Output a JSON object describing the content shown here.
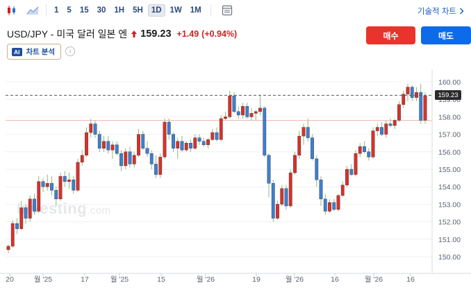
{
  "toolbar": {
    "timeframes": [
      "1",
      "5",
      "15",
      "30",
      "1H",
      "5H",
      "1D",
      "1W",
      "1M"
    ],
    "active_timeframe": "1D",
    "tech_chart_label": "기술적 차트"
  },
  "header": {
    "pair_name": "USD/JPY - 미국 달러 일본 엔",
    "price": "159.23",
    "change": "+1.49",
    "change_pct": "(+0.94%)"
  },
  "buttons": {
    "buy": "매수",
    "sell": "매도"
  },
  "ai": {
    "badge": "AI",
    "label": "차트 분석"
  },
  "chart_data": {
    "type": "candlestick",
    "y_ticks": [
      "160.00",
      "159.00",
      "158.00",
      "157.00",
      "156.00",
      "155.00",
      "154.00",
      "153.00",
      "152.00",
      "151.00",
      "150.00"
    ],
    "x_ticks": [
      "20",
      "월 '25",
      "17",
      "월 '25",
      "15",
      "월 '26",
      "19",
      "월 '26",
      "16",
      "월 '26",
      "16"
    ],
    "last_price": "159.23",
    "horizontal_line": 157.8,
    "watermark_main": "Investing",
    "watermark_sub": ".com",
    "candles": [
      [
        150.4,
        150.7,
        150.2,
        150.6
      ],
      [
        150.6,
        152.1,
        150.5,
        151.9
      ],
      [
        151.9,
        152.2,
        151.3,
        151.6
      ],
      [
        151.6,
        153.2,
        151.5,
        152.8
      ],
      [
        152.8,
        153.0,
        151.9,
        152.2
      ],
      [
        152.2,
        153.5,
        152.0,
        153.3
      ],
      [
        153.3,
        153.6,
        152.4,
        152.6
      ],
      [
        152.6,
        154.6,
        152.5,
        154.3
      ],
      [
        154.3,
        154.5,
        153.7,
        154.0
      ],
      [
        154.0,
        154.7,
        153.8,
        154.2
      ],
      [
        154.2,
        154.6,
        153.5,
        153.8
      ],
      [
        153.8,
        154.0,
        152.9,
        153.3
      ],
      [
        153.3,
        154.8,
        153.2,
        154.6
      ],
      [
        154.6,
        154.9,
        154.0,
        154.3
      ],
      [
        154.3,
        154.8,
        153.9,
        154.4
      ],
      [
        154.4,
        154.6,
        153.6,
        153.8
      ],
      [
        153.8,
        155.6,
        153.7,
        155.4
      ],
      [
        155.4,
        156.1,
        155.2,
        155.8
      ],
      [
        155.8,
        157.4,
        155.7,
        157.1
      ],
      [
        157.1,
        157.9,
        156.8,
        157.6
      ],
      [
        157.6,
        157.8,
        156.8,
        157.0
      ],
      [
        157.0,
        157.2,
        156.0,
        156.2
      ],
      [
        156.2,
        156.9,
        156.0,
        156.6
      ],
      [
        156.6,
        156.9,
        155.9,
        156.1
      ],
      [
        156.1,
        156.6,
        155.6,
        156.4
      ],
      [
        156.4,
        156.6,
        155.8,
        155.9
      ],
      [
        155.9,
        156.1,
        154.9,
        155.2
      ],
      [
        155.2,
        156.2,
        155.0,
        156.0
      ],
      [
        156.0,
        156.3,
        155.1,
        155.3
      ],
      [
        155.3,
        156.0,
        155.1,
        155.8
      ],
      [
        155.8,
        157.3,
        155.7,
        157.0
      ],
      [
        157.0,
        157.2,
        156.1,
        156.2
      ],
      [
        156.2,
        156.6,
        155.7,
        155.9
      ],
      [
        155.9,
        156.1,
        155.0,
        155.3
      ],
      [
        155.3,
        155.8,
        154.5,
        154.7
      ],
      [
        154.7,
        155.9,
        154.5,
        155.7
      ],
      [
        155.7,
        157.9,
        155.6,
        157.7
      ],
      [
        157.7,
        157.9,
        156.7,
        157.0
      ],
      [
        157.0,
        157.1,
        156.0,
        156.2
      ],
      [
        156.2,
        156.8,
        155.6,
        156.6
      ],
      [
        156.6,
        156.9,
        156.0,
        156.1
      ],
      [
        156.1,
        156.6,
        156.0,
        156.5
      ],
      [
        156.5,
        156.7,
        156.0,
        156.2
      ],
      [
        156.2,
        157.0,
        156.1,
        156.8
      ],
      [
        156.8,
        157.0,
        156.4,
        156.6
      ],
      [
        156.6,
        156.8,
        156.3,
        156.4
      ],
      [
        156.4,
        156.8,
        156.2,
        156.7
      ],
      [
        156.7,
        157.3,
        156.6,
        157.1
      ],
      [
        157.1,
        157.4,
        156.6,
        156.7
      ],
      [
        156.7,
        158.1,
        156.6,
        157.9
      ],
      [
        157.9,
        158.3,
        157.8,
        158.0
      ],
      [
        158.0,
        159.5,
        157.9,
        159.2
      ],
      [
        159.2,
        159.4,
        158.2,
        158.3
      ],
      [
        158.3,
        158.6,
        157.9,
        158.1
      ],
      [
        158.1,
        158.8,
        157.9,
        158.6
      ],
      [
        158.6,
        158.8,
        157.9,
        158.0
      ],
      [
        158.0,
        158.5,
        157.8,
        158.2
      ],
      [
        158.2,
        158.4,
        157.8,
        158.3
      ],
      [
        158.3,
        159.2,
        158.1,
        158.5
      ],
      [
        158.5,
        158.6,
        155.7,
        155.8
      ],
      [
        155.8,
        155.9,
        153.4,
        154.2
      ],
      [
        154.2,
        154.4,
        152.0,
        152.2
      ],
      [
        152.2,
        153.2,
        152.1,
        153.0
      ],
      [
        153.0,
        154.1,
        152.9,
        153.9
      ],
      [
        153.9,
        154.1,
        152.7,
        152.9
      ],
      [
        152.9,
        155.0,
        152.8,
        154.8
      ],
      [
        154.8,
        156.0,
        154.7,
        155.8
      ],
      [
        155.8,
        157.2,
        155.6,
        156.9
      ],
      [
        156.9,
        157.6,
        156.4,
        157.4
      ],
      [
        157.4,
        157.9,
        156.6,
        156.8
      ],
      [
        156.8,
        157.0,
        155.5,
        155.6
      ],
      [
        155.6,
        155.8,
        154.0,
        154.4
      ],
      [
        154.4,
        154.6,
        152.9,
        153.3
      ],
      [
        153.3,
        153.6,
        152.4,
        152.6
      ],
      [
        152.6,
        153.3,
        152.5,
        153.1
      ],
      [
        153.1,
        153.3,
        152.6,
        152.7
      ],
      [
        152.7,
        153.6,
        152.6,
        153.5
      ],
      [
        153.5,
        154.3,
        153.4,
        154.1
      ],
      [
        154.1,
        155.2,
        154.0,
        155.0
      ],
      [
        155.0,
        155.3,
        154.6,
        154.7
      ],
      [
        154.7,
        156.1,
        154.6,
        155.9
      ],
      [
        155.9,
        156.5,
        155.7,
        156.3
      ],
      [
        156.3,
        156.6,
        155.9,
        156.0
      ],
      [
        156.0,
        156.2,
        155.5,
        155.7
      ],
      [
        155.7,
        157.4,
        155.6,
        157.2
      ],
      [
        157.2,
        157.6,
        156.9,
        157.4
      ],
      [
        157.4,
        157.7,
        156.9,
        157.0
      ],
      [
        157.0,
        157.8,
        156.8,
        157.6
      ],
      [
        157.6,
        157.9,
        157.4,
        157.5
      ],
      [
        157.5,
        157.9,
        157.3,
        157.8
      ],
      [
        157.8,
        158.9,
        157.7,
        158.7
      ],
      [
        158.7,
        159.5,
        158.5,
        159.3
      ],
      [
        159.3,
        159.9,
        158.9,
        159.7
      ],
      [
        159.7,
        159.8,
        158.9,
        159.1
      ],
      [
        159.1,
        159.7,
        158.9,
        159.4
      ],
      [
        159.4,
        159.9,
        157.6,
        157.8
      ],
      [
        157.8,
        159.4,
        157.6,
        159.2
      ]
    ]
  }
}
